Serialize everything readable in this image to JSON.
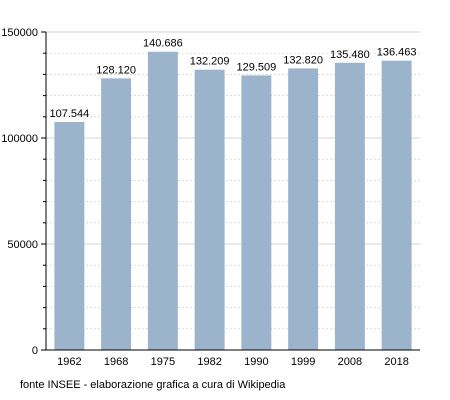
{
  "chart_data": {
    "type": "bar",
    "categories": [
      "1962",
      "1968",
      "1975",
      "1982",
      "1990",
      "1999",
      "2008",
      "2018"
    ],
    "values": [
      107544,
      128120,
      140686,
      132209,
      129509,
      132820,
      135480,
      136463
    ],
    "value_labels": [
      "107.544",
      "128.120",
      "140.686",
      "132.209",
      "129.509",
      "132.820",
      "135.480",
      "136.463"
    ],
    "ylim": [
      0,
      150000
    ],
    "yticks": [
      0,
      50000,
      100000,
      150000
    ],
    "ytick_labels": [
      "0",
      "50000",
      "100000",
      "150000"
    ],
    "grid": true,
    "bar_color": "#9bb3cb",
    "gridline_color": "#c8c8c8"
  },
  "footer": {
    "source": "fonte INSEE - elaborazione grafica a cura di Wikipedia"
  }
}
